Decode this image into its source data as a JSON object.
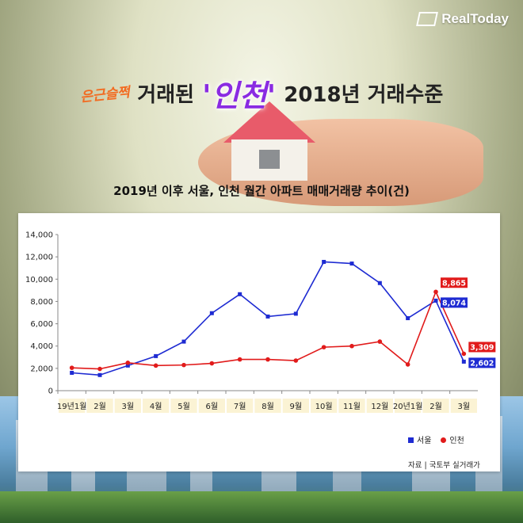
{
  "brand": {
    "name": "RealToday"
  },
  "headline": {
    "accent": "은근슬쩍",
    "part1": "거래된",
    "highlight": "'인천'",
    "part2": "2018년 거래수준"
  },
  "chart_data": {
    "type": "line",
    "title": "2019년 이후 서울, 인천 월간 아파트 매매거래량 추이(건)",
    "categories": [
      "19년1월",
      "2월",
      "3월",
      "4월",
      "5월",
      "6월",
      "7월",
      "8월",
      "9월",
      "10월",
      "11월",
      "12월",
      "20년1월",
      "2월",
      "3월"
    ],
    "y_ticks": [
      "0",
      "2,000",
      "4,000",
      "6,000",
      "8,000",
      "10,000",
      "12,000",
      "14,000"
    ],
    "ylim": [
      0,
      14000
    ],
    "series": [
      {
        "name": "서울",
        "color": "#1e2bd2",
        "marker": "square",
        "values": [
          1600,
          1400,
          2250,
          3100,
          4400,
          6950,
          8650,
          6650,
          6900,
          11550,
          11400,
          9650,
          6500,
          8074,
          2602
        ]
      },
      {
        "name": "인천",
        "color": "#e11b1b",
        "marker": "circle",
        "values": [
          2050,
          1950,
          2500,
          2250,
          2300,
          2450,
          2800,
          2800,
          2700,
          3900,
          4000,
          4400,
          2350,
          8865,
          3309
        ]
      }
    ],
    "data_labels": [
      {
        "series": 0,
        "index": 13,
        "text": "8,074"
      },
      {
        "series": 0,
        "index": 14,
        "text": "2,602"
      },
      {
        "series": 1,
        "index": 13,
        "text": "8,865"
      },
      {
        "series": 1,
        "index": 14,
        "text": "3,309"
      }
    ],
    "legend_position": "bottom-right"
  },
  "source": {
    "text": "자료 | 국토부 실거래가"
  }
}
